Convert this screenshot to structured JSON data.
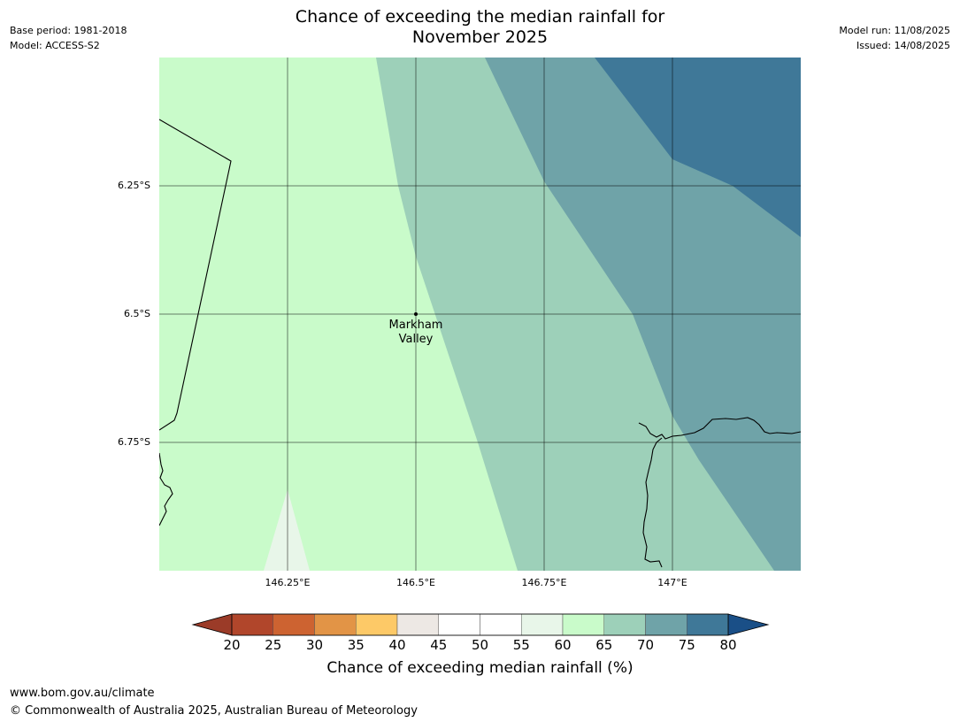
{
  "title": {
    "line1": "Chance of exceeding the median rainfall for",
    "line2": "November 2025"
  },
  "meta": {
    "base_period": "Base period: 1981-2018",
    "model": "Model: ACCESS-S2",
    "model_run": "Model run: 11/08/2025",
    "issued": "Issued: 14/08/2025"
  },
  "map": {
    "latitude_labels": [
      "6.25°S",
      "6.5°S",
      "6.75°S"
    ],
    "longitude_labels": [
      "146.25°E",
      "146.5°E",
      "146.75°E",
      "147°E"
    ],
    "place": {
      "name_line1": "Markham",
      "name_line2": "Valley",
      "marker": "location-dot"
    },
    "shading": [
      {
        "band": "55-60",
        "color": "#e8f6e9"
      },
      {
        "band": "60-65",
        "color": "#c9fbca"
      },
      {
        "band": "65-70",
        "color": "#9dd0b9"
      },
      {
        "band": "70-75",
        "color": "#6fa3a8"
      },
      {
        "band": "75-80",
        "color": "#3f7898"
      }
    ]
  },
  "colorbar": {
    "ticks": [
      "20",
      "25",
      "30",
      "35",
      "40",
      "45",
      "50",
      "55",
      "60",
      "65",
      "70",
      "75",
      "80"
    ],
    "colors": [
      "#b1462b",
      "#cd6331",
      "#e29446",
      "#fdc967",
      "#ede8e4",
      "#ffffff",
      "#ffffff",
      "#e8f6e9",
      "#c9fbca",
      "#9dd0b9",
      "#6fa3a8",
      "#3f7898"
    ],
    "under_color": "#9b3b28",
    "over_color": "#1a4f87",
    "label": "Chance of exceeding median rainfall (%)"
  },
  "footer": {
    "url": "www.bom.gov.au/climate",
    "copyright": "© Commonwealth of Australia 2025, Australian Bureau of Meteorology"
  }
}
